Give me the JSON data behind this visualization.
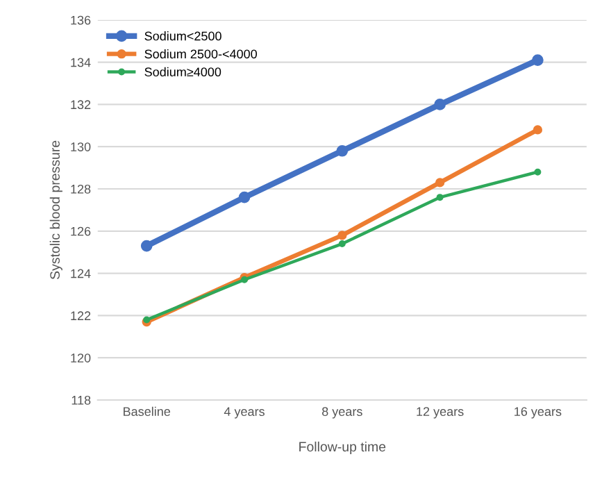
{
  "chart_data": {
    "type": "line",
    "xlabel": "Follow-up time",
    "ylabel": "Systolic blood pressure",
    "categories": [
      "Baseline",
      "4 years",
      "8 years",
      "12 years",
      "16 years"
    ],
    "series": [
      {
        "name": "Sodium<2500",
        "color": "#4472c4",
        "values": [
          125.3,
          127.6,
          129.8,
          132.0,
          134.1
        ]
      },
      {
        "name": "Sodium 2500-<4000",
        "color": "#ed7d31",
        "values": [
          121.7,
          123.8,
          125.8,
          128.3,
          130.8
        ]
      },
      {
        "name": "Sodium≥4000",
        "color": "#2ea85a",
        "values": [
          121.8,
          123.7,
          125.4,
          127.6,
          128.8
        ]
      }
    ],
    "ylim": [
      118,
      136
    ],
    "yticks": [
      118,
      120,
      122,
      124,
      126,
      128,
      130,
      132,
      134,
      136
    ],
    "grid": "y",
    "legend": "top left",
    "marker": "circle",
    "line_style": "solid"
  }
}
